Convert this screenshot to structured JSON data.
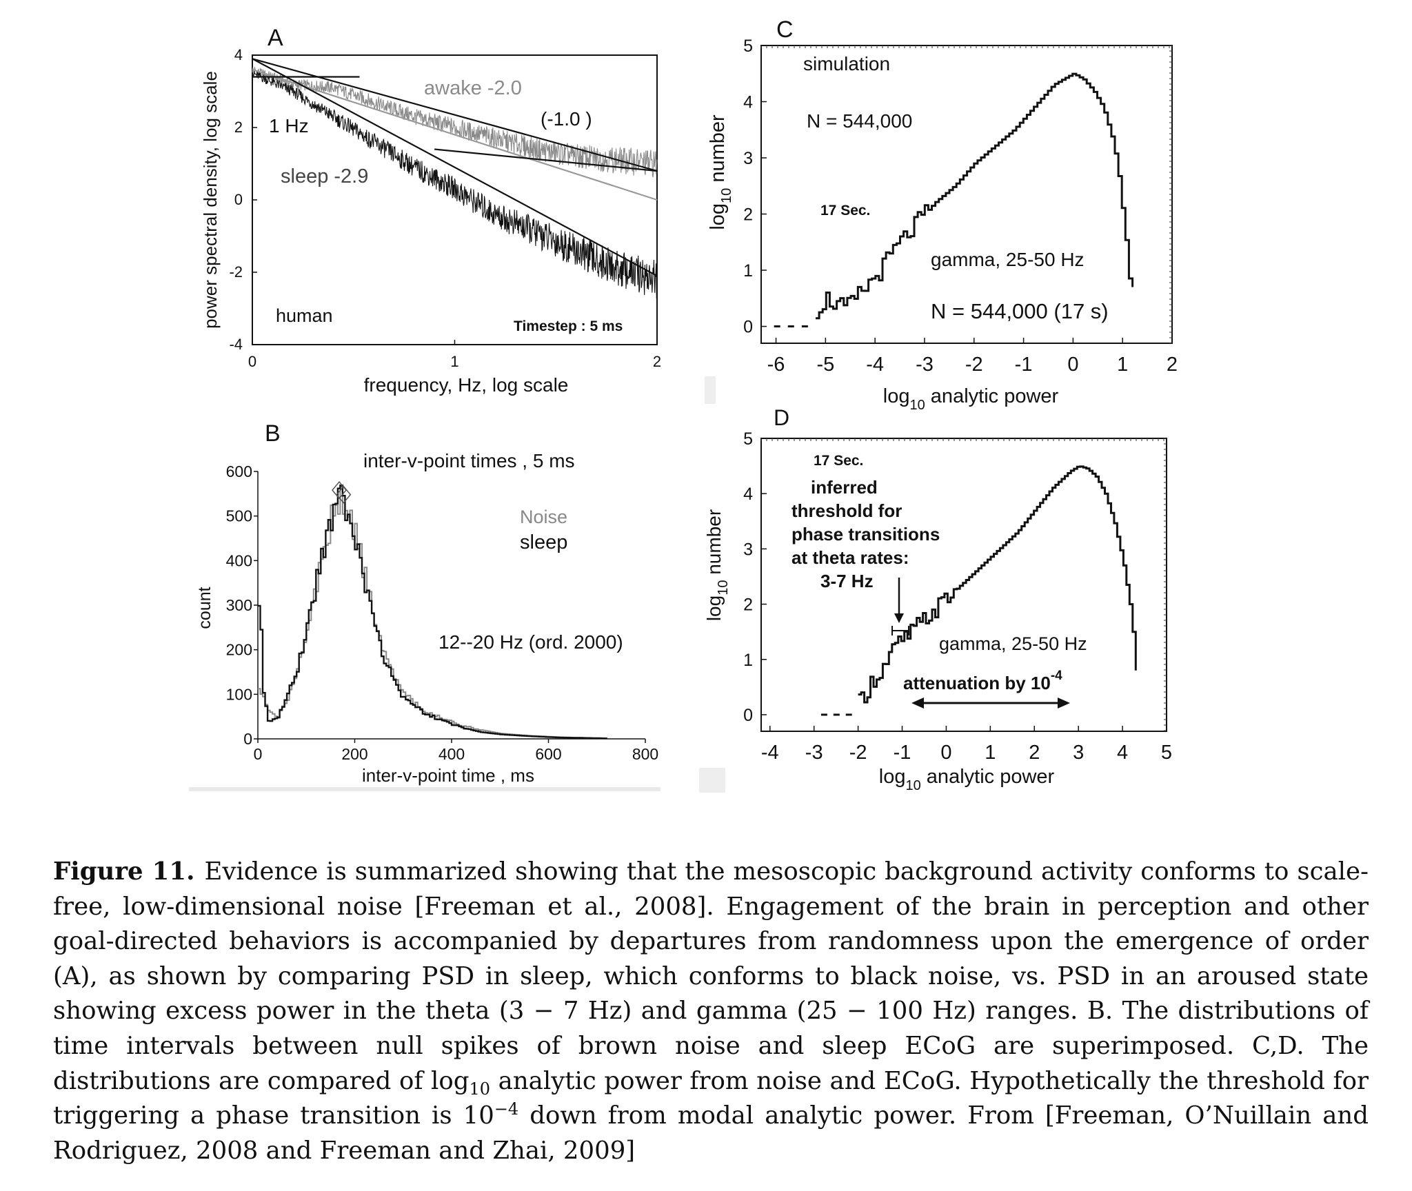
{
  "figure": {
    "label": "Figure 11.",
    "caption_parts": {
      "p1": "Evidence is summarized showing that the mesoscopic background activity conforms to scale-free, low-dimensional noise [Freeman et al., 2008]. Engagement of the brain in perception and other goal-directed behaviors is accompanied by departures from randomness upon the emergence of order (A), as shown by comparing PSD in sleep, which conforms to black noise, vs. PSD in an aroused state showing excess power in the theta (3 − 7 Hz) and gamma (25 − 100 Hz) ranges. B. The distributions of time intervals between null spikes of brown noise and sleep ECoG are superimposed. C,D. The distributions are compared of log",
      "sub10": "10",
      "p2": " analytic power from noise and ECoG. Hypothetically the threshold for triggering a phase transition is 10",
      "supneg4": "−4",
      "p3": " down from modal analytic power. From [Freeman, O’Nuillain and Rodriguez, 2008 and Freeman and Zhai, 2009]"
    }
  },
  "panel_a": {
    "letter": "A",
    "ylabel": "power spectral density, log scale",
    "xlabel": "frequency, Hz, log scale",
    "yticks": [
      "4",
      "2",
      "0",
      "-2",
      "-4"
    ],
    "xticks": [
      "0",
      "1",
      "2"
    ],
    "label_awake": "awake  -2.0",
    "label_gamma_slope": "(-1.0 )",
    "label_1hz": "1 Hz",
    "label_sleep": "sleep -2.9",
    "label_human": "human",
    "label_timestep": "Timestep : 5 ms"
  },
  "panel_b": {
    "letter": "B",
    "title": "inter-v-point times , 5 ms",
    "ylabel": "count",
    "xlabel": "inter-v-point time , ms",
    "yticks": [
      "600",
      "500",
      "400",
      "300",
      "200",
      "100",
      "0"
    ],
    "xticks": [
      "0",
      "200",
      "400",
      "600",
      "800"
    ],
    "legend_noise": "Noise",
    "legend_sleep": "sleep",
    "label_band": "12--20 Hz (ord. 2000)"
  },
  "panel_c": {
    "letter": "C",
    "ylabel_main": "log",
    "ylabel_sub": "10",
    "ylabel_tail": " number",
    "xlabel_main": "log",
    "xlabel_sub": "10",
    "xlabel_tail": " analytic power",
    "yticks": [
      "5",
      "4",
      "3",
      "2",
      "1",
      "0"
    ],
    "xticks": [
      "-6",
      "-5",
      "-4",
      "-3",
      "-2",
      "-1",
      "0",
      "1",
      "2"
    ],
    "label_sim": "simulation",
    "label_n": "N = 544,000",
    "label_17": "17 Sec.",
    "label_gamma": "gamma, 25-50 Hz",
    "label_n2": "N = 544,000 (17 s)"
  },
  "panel_d": {
    "letter": "D",
    "ylabel_main": "log",
    "ylabel_sub": "10",
    "ylabel_tail": " number",
    "xlabel_main": "log",
    "xlabel_sub": "10",
    "xlabel_tail": " analytic power",
    "yticks": [
      "5",
      "4",
      "3",
      "2",
      "1",
      "0"
    ],
    "xticks": [
      "-4",
      "-3",
      "-2",
      "-1",
      "0",
      "1",
      "2",
      "3",
      "4",
      "5"
    ],
    "label_17": "17 Sec.",
    "thresh_lines": [
      "inferred",
      "threshold for",
      "phase transitions",
      "at theta rates:",
      "3-7 Hz"
    ],
    "label_gamma": "gamma, 25-50 Hz",
    "label_atten": "attenuation by 10",
    "label_atten_sup": "-4"
  },
  "chart_data": [
    {
      "type": "line",
      "panel": "A",
      "xlabel": "frequency, Hz, log scale",
      "ylabel": "power spectral density, log scale",
      "xlim": [
        0,
        2
      ],
      "ylim": [
        -4,
        4
      ],
      "series": [
        {
          "name": "awake",
          "slope": -2.0,
          "color": "#8a8a8a",
          "x": [
            0,
            0.2,
            0.4,
            0.6,
            0.8,
            1.0,
            1.2,
            1.4,
            1.6,
            1.8,
            2.0
          ],
          "y": [
            3.6,
            3.2,
            3.1,
            2.7,
            2.3,
            2.0,
            1.7,
            1.4,
            1.2,
            1.1,
            1.0
          ]
        },
        {
          "name": "sleep",
          "slope": -2.9,
          "color": "#111111",
          "x": [
            0,
            0.2,
            0.4,
            0.6,
            0.8,
            1.0,
            1.2,
            1.4,
            1.6,
            1.8,
            2.0
          ],
          "y": [
            3.5,
            3.0,
            2.3,
            1.6,
            0.9,
            0.3,
            -0.4,
            -0.9,
            -1.4,
            -1.9,
            -2.2
          ]
        }
      ],
      "fit_lines": [
        {
          "x": [
            0,
            2
          ],
          "y": [
            3.9,
            0.8
          ],
          "color": "#111111"
        },
        {
          "x": [
            0,
            2
          ],
          "y": [
            3.6,
            0.0
          ],
          "color": "#999999"
        },
        {
          "x": [
            0,
            0.53
          ],
          "y": [
            3.4,
            3.4
          ],
          "color": "#111111"
        },
        {
          "x": [
            0,
            2
          ],
          "y": [
            3.9,
            -2.1
          ],
          "color": "#111111"
        },
        {
          "x": [
            0.9,
            2
          ],
          "y": [
            1.4,
            0.8
          ],
          "color": "#111111"
        }
      ]
    },
    {
      "type": "line",
      "panel": "B",
      "xlabel": "inter-v-point time , ms",
      "ylabel": "count",
      "xlim": [
        0,
        800
      ],
      "ylim": [
        0,
        600
      ],
      "series": [
        {
          "name": "Noise",
          "color": "#8a8a8a",
          "x": [
            0,
            20,
            40,
            60,
            80,
            100,
            120,
            140,
            160,
            170,
            180,
            200,
            220,
            240,
            260,
            280,
            300,
            340,
            380,
            420,
            460,
            500,
            560,
            620,
            680,
            720
          ],
          "y": [
            120,
            60,
            50,
            90,
            150,
            240,
            350,
            450,
            530,
            540,
            520,
            460,
            360,
            260,
            190,
            140,
            100,
            65,
            45,
            30,
            20,
            12,
            7,
            4,
            2,
            1
          ]
        },
        {
          "name": "sleep",
          "color": "#111111",
          "x": [
            0,
            5,
            10,
            20,
            40,
            60,
            80,
            100,
            120,
            140,
            160,
            170,
            180,
            200,
            220,
            240,
            260,
            280,
            300,
            340,
            380,
            420,
            460,
            500,
            560,
            620,
            680,
            720
          ],
          "y": [
            280,
            260,
            100,
            40,
            50,
            100,
            160,
            250,
            360,
            460,
            540,
            550,
            520,
            450,
            340,
            250,
            180,
            130,
            90,
            60,
            40,
            25,
            15,
            10,
            6,
            3,
            2,
            1
          ]
        }
      ]
    },
    {
      "type": "line",
      "panel": "C",
      "xlabel": "log10 analytic power",
      "ylabel": "log10 number",
      "xlim": [
        -6.3,
        2
      ],
      "ylim": [
        -0.3,
        5
      ],
      "series": [
        {
          "name": "simulation",
          "x": [
            -5.2,
            -5.0,
            -4.6,
            -4.2,
            -3.9,
            -3.6,
            -3.2,
            -2.8,
            -2.4,
            -2.0,
            -1.6,
            -1.2,
            -0.8,
            -0.4,
            0.0,
            0.2,
            0.4,
            0.6,
            0.8,
            0.9,
            1.0,
            1.1,
            1.15,
            1.2
          ],
          "y": [
            0.3,
            0.5,
            0.3,
            0.7,
            1.0,
            1.4,
            1.8,
            2.2,
            2.5,
            2.9,
            3.2,
            3.5,
            3.9,
            4.3,
            4.5,
            4.4,
            4.2,
            3.9,
            3.3,
            2.8,
            2.0,
            1.2,
            0.6,
            0.7
          ]
        }
      ]
    },
    {
      "type": "line",
      "panel": "D",
      "xlabel": "log10 analytic power",
      "ylabel": "log10 number",
      "xlim": [
        -4.2,
        5
      ],
      "ylim": [
        -0.3,
        5
      ],
      "series": [
        {
          "name": "ECoG",
          "x": [
            -2.0,
            -1.7,
            -1.4,
            -1.2,
            -0.8,
            -0.4,
            0.0,
            0.4,
            0.8,
            1.2,
            1.6,
            2.0,
            2.4,
            2.8,
            3.0,
            3.2,
            3.4,
            3.6,
            3.8,
            4.0,
            4.2,
            4.3
          ],
          "y": [
            0.2,
            0.6,
            0.9,
            1.2,
            1.5,
            1.8,
            2.1,
            2.4,
            2.7,
            3.0,
            3.3,
            3.7,
            4.1,
            4.4,
            4.5,
            4.45,
            4.3,
            4.0,
            3.5,
            2.8,
            1.8,
            0.8
          ]
        }
      ]
    }
  ]
}
